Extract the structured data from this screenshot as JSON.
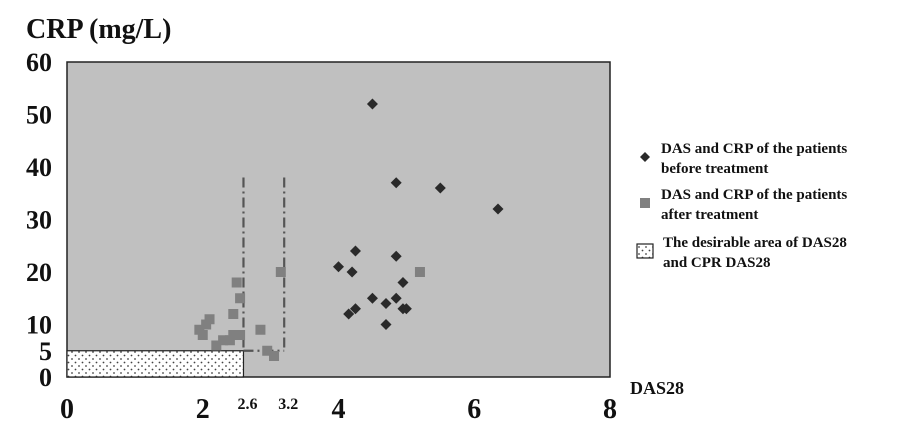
{
  "chart_data": {
    "type": "scatter",
    "title": "",
    "ylabel": "CRP (mg/L)",
    "xlabel": "DAS28",
    "xlim": [
      0,
      8
    ],
    "ylim": [
      0,
      60
    ],
    "x_ticks": [
      "0",
      "2",
      "4",
      "6",
      "8"
    ],
    "x_extra_ticks": [
      "2.6",
      "3.2"
    ],
    "y_ticks": [
      "0",
      "5",
      "10",
      "20",
      "30",
      "40",
      "50",
      "60"
    ],
    "grid": false,
    "plot_background": "#c0c0c0",
    "legend_position": "right",
    "series": [
      {
        "name": "DAS and CRP of the patients before treatment",
        "marker": "diamond",
        "color": "#2a2a2a",
        "points": [
          [
            4.5,
            52
          ],
          [
            4.85,
            37
          ],
          [
            5.5,
            36
          ],
          [
            6.35,
            32
          ],
          [
            4.25,
            24
          ],
          [
            4.85,
            23
          ],
          [
            4.0,
            21
          ],
          [
            4.2,
            20
          ],
          [
            4.95,
            18
          ],
          [
            4.5,
            15
          ],
          [
            4.85,
            15
          ],
          [
            4.7,
            14
          ],
          [
            4.95,
            13
          ],
          [
            5.0,
            13
          ],
          [
            4.25,
            13
          ],
          [
            4.15,
            12
          ],
          [
            4.7,
            10
          ]
        ]
      },
      {
        "name": "DAS and CRP of the patients after treatment",
        "marker": "square",
        "color": "#808080",
        "points": [
          [
            2.5,
            18
          ],
          [
            2.55,
            15
          ],
          [
            2.1,
            11
          ],
          [
            2.45,
            12
          ],
          [
            2.05,
            10
          ],
          [
            1.95,
            9
          ],
          [
            2.85,
            9
          ],
          [
            2.0,
            8
          ],
          [
            2.45,
            8
          ],
          [
            2.55,
            8
          ],
          [
            2.3,
            7
          ],
          [
            2.2,
            6
          ],
          [
            2.4,
            7
          ],
          [
            3.15,
            20
          ],
          [
            5.2,
            20
          ],
          [
            2.95,
            5
          ],
          [
            3.05,
            4
          ]
        ]
      }
    ],
    "desirable_area": {
      "label": "The desirable area of DAS28 and CPR DAS28",
      "x_range": [
        0,
        2.6
      ],
      "y_range": [
        0,
        5
      ],
      "pattern": "dotted"
    },
    "reference_lines": {
      "x_values": [
        2.6,
        3.2
      ],
      "y_top": 38,
      "style": "dash-dot"
    },
    "legend": [
      {
        "marker": "diamond",
        "text": [
          "DAS and CRP of the patients",
          "before treatment"
        ]
      },
      {
        "marker": "square",
        "text": [
          "DAS and CRP of the patients",
          "after treatment"
        ]
      },
      {
        "marker": "dotted-box",
        "text": [
          "The desirable area of DAS28",
          "and CPR DAS28"
        ]
      }
    ]
  }
}
